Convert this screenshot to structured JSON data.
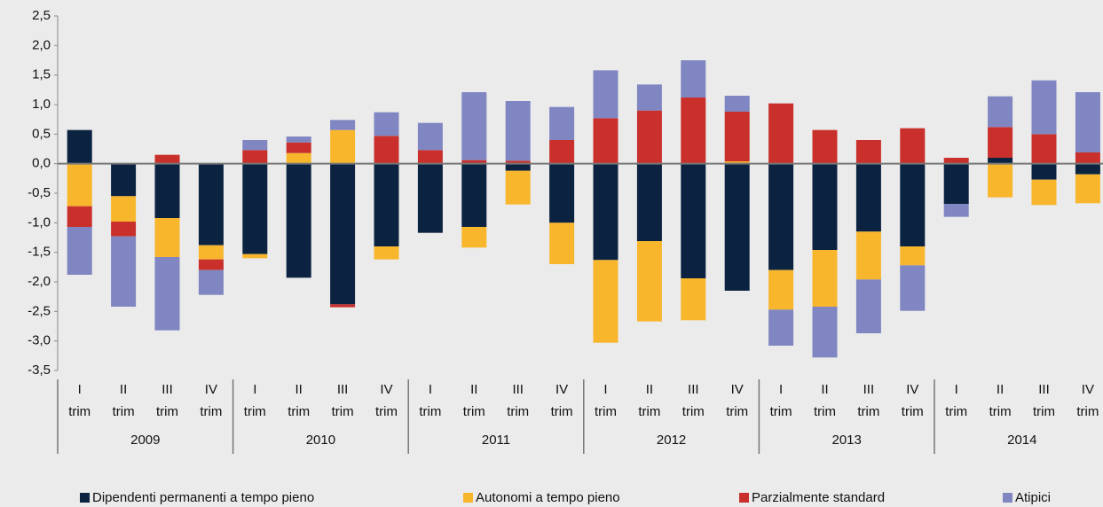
{
  "chart_data": {
    "type": "bar",
    "stacked": true,
    "categories": [
      [
        "I",
        "trim"
      ],
      [
        "II",
        "trim"
      ],
      [
        "III",
        "trim"
      ],
      [
        "IV",
        "trim"
      ],
      [
        "I",
        "trim"
      ],
      [
        "II",
        "trim"
      ],
      [
        "III",
        "trim"
      ],
      [
        "IV",
        "trim"
      ],
      [
        "I",
        "trim"
      ],
      [
        "II",
        "trim"
      ],
      [
        "III",
        "trim"
      ],
      [
        "IV",
        "trim"
      ],
      [
        "I",
        "trim"
      ],
      [
        "II",
        "trim"
      ],
      [
        "III",
        "trim"
      ],
      [
        "IV",
        "trim"
      ],
      [
        "I",
        "trim"
      ],
      [
        "II",
        "trim"
      ],
      [
        "III",
        "trim"
      ],
      [
        "IV",
        "trim"
      ],
      [
        "I",
        "trim"
      ],
      [
        "II",
        "trim"
      ],
      [
        "III",
        "trim"
      ],
      [
        "IV",
        "trim"
      ]
    ],
    "years": [
      "2009",
      "2010",
      "2011",
      "2012",
      "2013",
      "2014"
    ],
    "series": [
      {
        "name": "Dipendenti permanenti a tempo pieno",
        "color": "#0b2340",
        "values": [
          0.57,
          -0.55,
          -0.92,
          -1.38,
          -1.53,
          -1.93,
          -2.38,
          -1.4,
          -1.17,
          -1.07,
          -0.12,
          -1.0,
          -1.63,
          -1.31,
          -1.94,
          -2.15,
          -1.8,
          -1.46,
          -1.15,
          -1.4,
          -0.68,
          0.1,
          -0.27,
          -0.18
        ]
      },
      {
        "name": "Autonomi a tempo pieno",
        "color": "#f8b62d",
        "values": [
          -0.72,
          -0.43,
          -0.66,
          -0.24,
          -0.07,
          0.18,
          0.57,
          -0.22,
          0,
          -0.35,
          -0.57,
          -0.7,
          -1.4,
          -1.36,
          -0.71,
          0.04,
          -0.67,
          -0.96,
          -0.81,
          -0.32,
          0,
          -0.57,
          -0.43,
          -0.49
        ]
      },
      {
        "name": "Parzialmente standard",
        "color": "#c9302c",
        "values": [
          -0.35,
          -0.25,
          0.15,
          -0.18,
          0.23,
          0.18,
          -0.05,
          0.47,
          0.23,
          0.06,
          0.05,
          0.4,
          0.77,
          0.9,
          1.12,
          0.84,
          1.02,
          0.57,
          0.4,
          0.6,
          0.1,
          0.52,
          0.5,
          0.19
        ]
      },
      {
        "name": "Atipici",
        "color": "#7f86c1",
        "values": [
          -0.81,
          -1.19,
          -1.24,
          -0.42,
          0.17,
          0.1,
          0.17,
          0.4,
          0.46,
          1.15,
          1.01,
          0.56,
          0.81,
          0.44,
          0.63,
          0.27,
          -0.61,
          -0.86,
          -0.91,
          -0.77,
          -0.22,
          0.52,
          0.91,
          1.02
        ]
      }
    ],
    "ylim": [
      -3.5,
      2.5
    ],
    "yticks": [
      {
        "value": 2.5,
        "label": "2,5"
      },
      {
        "value": 2,
        "label": "2,0"
      },
      {
        "value": 1.5,
        "label": "1,5"
      },
      {
        "value": 1,
        "label": "1,0"
      },
      {
        "value": 0.5,
        "label": "0,5"
      },
      {
        "value": 0,
        "label": "0,0"
      },
      {
        "value": -0.5,
        "label": "-0,5"
      },
      {
        "value": -1,
        "label": "-1,0"
      },
      {
        "value": -1.5,
        "label": "-1,5"
      },
      {
        "value": -2,
        "label": "-2,0"
      },
      {
        "value": -2.5,
        "label": "-2,5"
      },
      {
        "value": -3,
        "label": "-3,0"
      },
      {
        "value": -3.5,
        "label": "-3,5"
      }
    ],
    "grid": false,
    "legend": "bottom"
  }
}
